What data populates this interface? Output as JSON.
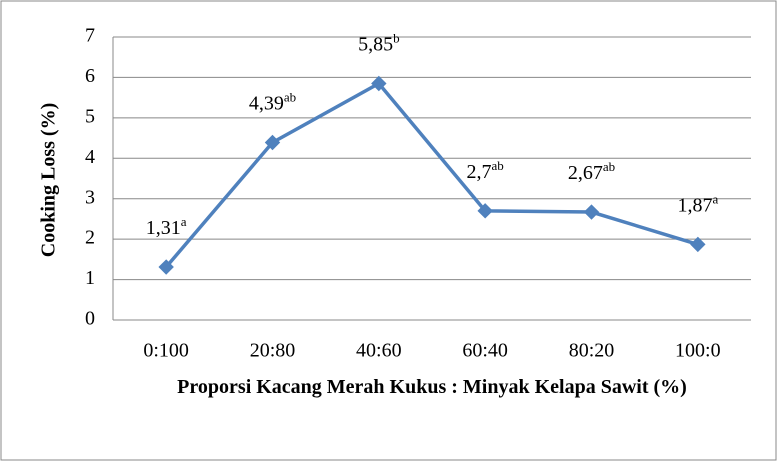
{
  "chart_data": {
    "type": "line",
    "categories": [
      "0:100",
      "20:80",
      "40:60",
      "60:40",
      "80:20",
      "100:0"
    ],
    "series": [
      {
        "name": "Cooking Loss",
        "color": "#4f81bd",
        "values": [
          1.31,
          4.39,
          5.85,
          2.7,
          2.67,
          1.87
        ],
        "value_labels": [
          "1,31",
          "4,39",
          "5,85",
          "2,7",
          "2,67",
          "1,87"
        ],
        "superscripts": [
          "a",
          "ab",
          "b",
          "ab",
          "ab",
          "a"
        ]
      }
    ],
    "ylim": [
      0,
      7
    ],
    "yticks": [
      0,
      1,
      2,
      3,
      4,
      5,
      6,
      7
    ],
    "grid": true,
    "y_label": "Cooking Loss  (%)",
    "x_label": "Proporsi Kacang Merah Kukus : Minyak Kelapa Sawit (%)"
  }
}
